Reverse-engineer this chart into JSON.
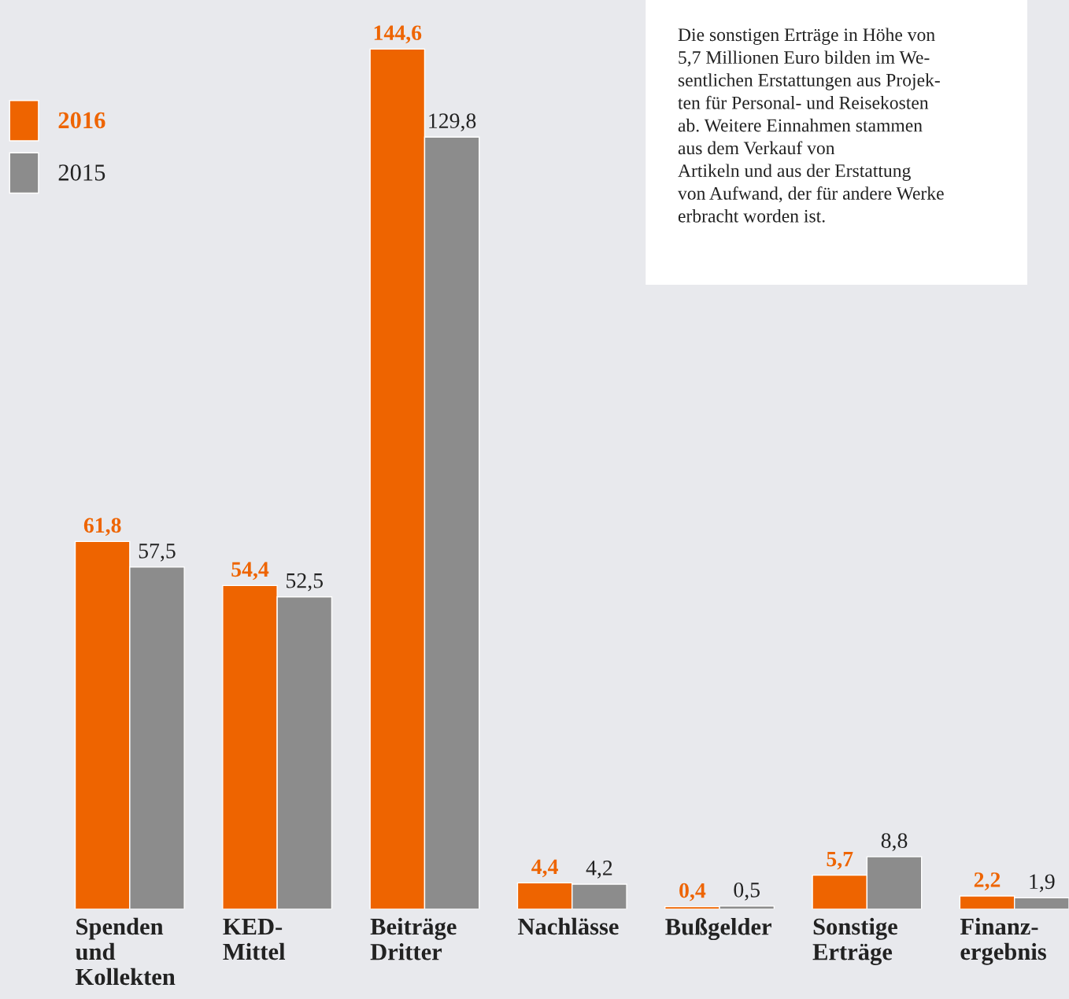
{
  "chart_data": {
    "type": "bar",
    "categories": [
      "Spenden\nund\nKollekten",
      "KED-\nMittel",
      "Beiträge\nDritter",
      "Nachlässe",
      "Bußgelder",
      "Sonstige\nErträge",
      "Finanz-\nergebnis"
    ],
    "series": [
      {
        "name": "2016",
        "color": "#ee6400",
        "values": [
          61.8,
          54.4,
          144.6,
          4.4,
          0.4,
          5.7,
          2.2
        ],
        "value_labels": [
          "61,8",
          "54,4",
          "144,6",
          "4,4",
          "0,4",
          "5,7",
          "2,2"
        ]
      },
      {
        "name": "2015",
        "color": "#8c8c8c",
        "values": [
          57.5,
          52.5,
          129.8,
          4.2,
          0.5,
          8.8,
          1.9
        ],
        "value_labels": [
          "57,5",
          "52,5",
          "129,8",
          "4,2",
          "0,5",
          "8,8",
          "1,9"
        ]
      }
    ],
    "legend": "top left",
    "grid": false,
    "annotations": [
      "Die sonstigen Erträge in Höhe von\n5,7 Millionen Euro bilden im We-\nsentlichen Erstattungen aus Projek-\nten für Personal- und Reisekosten\nab. Weitere Einnahmen stammen\naus dem Verkauf von\nArtikeln und aus der Erstattung\nvon Aufwand, der für andere Werke\nerbracht worden ist."
    ]
  }
}
